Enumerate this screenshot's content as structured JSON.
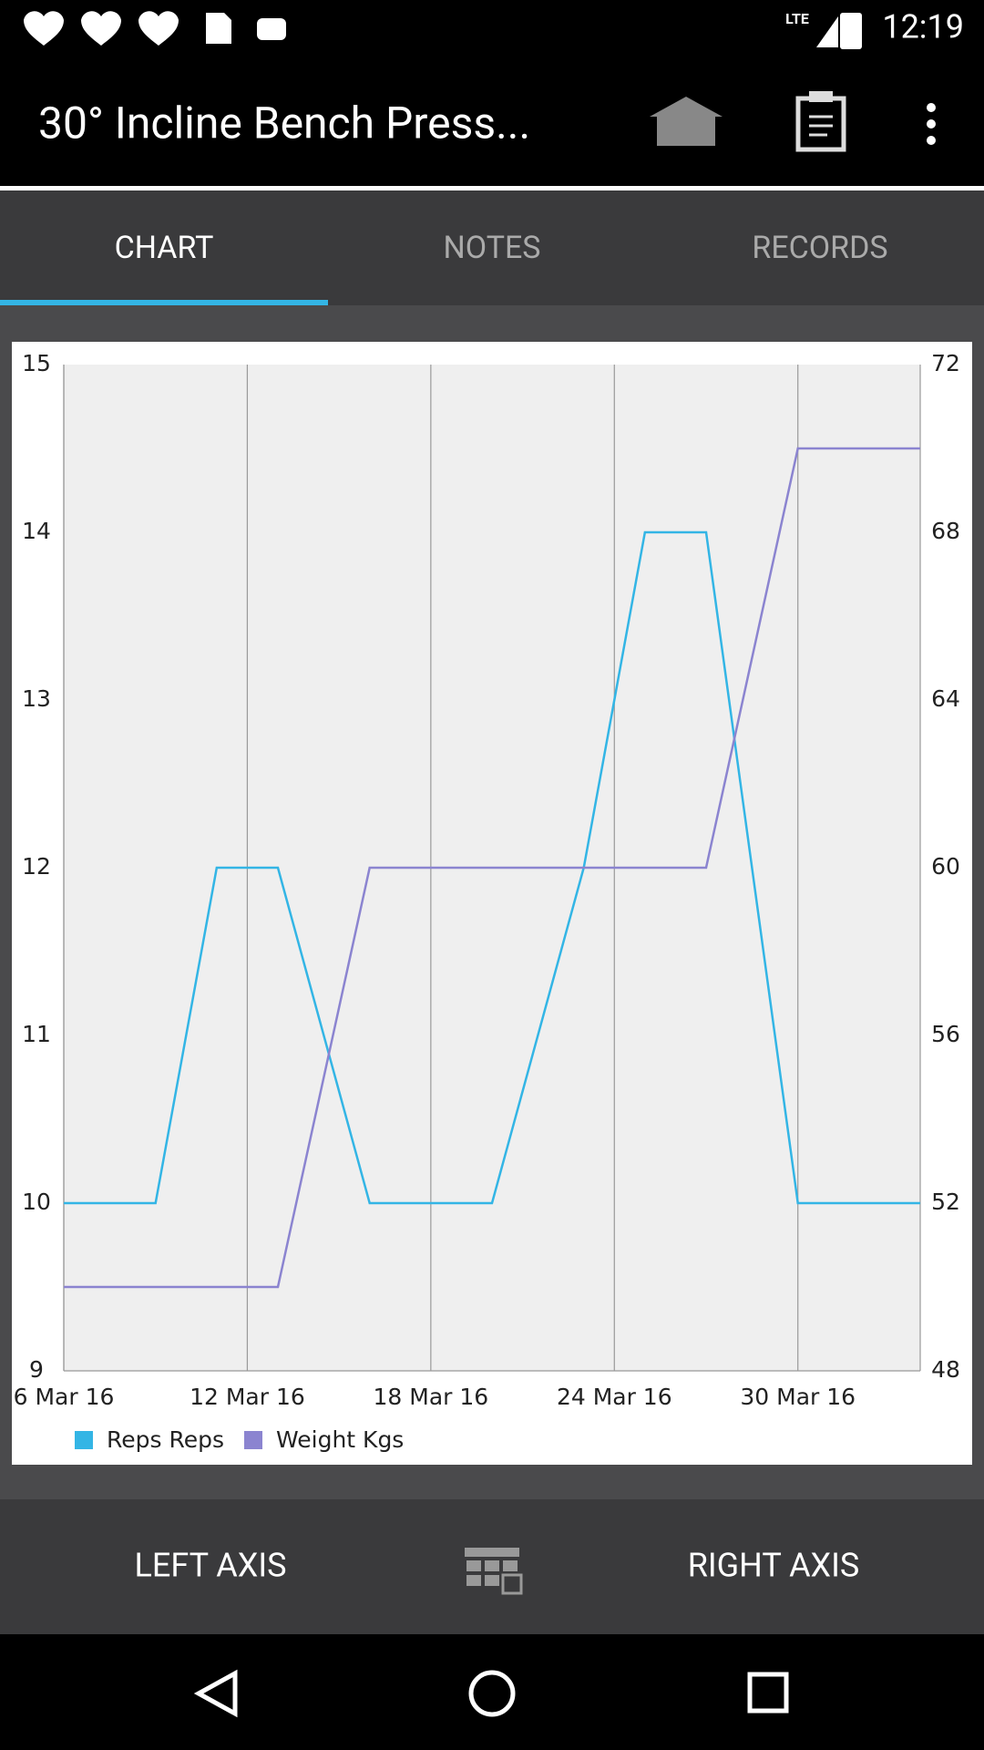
{
  "status_bar": {
    "network": "LTE",
    "time": "12:19"
  },
  "app_bar": {
    "title": "30° Incline Bench Press..."
  },
  "tabs": [
    "CHART",
    "NOTES",
    "RECORDS"
  ],
  "chart_data": {
    "type": "line",
    "x": [
      "2016-03-06",
      "2016-03-09",
      "2016-03-11",
      "2016-03-13",
      "2016-03-16",
      "2016-03-20",
      "2016-03-23",
      "2016-03-25",
      "2016-03-27",
      "2016-03-30",
      "2016-04-03"
    ],
    "series": [
      {
        "name": "Reps Reps",
        "color": "#33b5e5",
        "axis": "y",
        "values": [
          10,
          10,
          12,
          12,
          10,
          10,
          12,
          14,
          14,
          10,
          10
        ]
      },
      {
        "name": "Weight Kgs",
        "color": "#8b84d0",
        "axis": "y2",
        "values": [
          50,
          50,
          50,
          50,
          60,
          60,
          60,
          60,
          60,
          70,
          70
        ]
      }
    ],
    "xlim": [
      "2016-03-06",
      "2016-04-03"
    ],
    "xticks": [
      {
        "value": "2016-03-06",
        "label": "6 Mar 16"
      },
      {
        "value": "2016-03-12",
        "label": "12 Mar 16"
      },
      {
        "value": "2016-03-18",
        "label": "18 Mar 16"
      },
      {
        "value": "2016-03-24",
        "label": "24 Mar 16"
      },
      {
        "value": "2016-03-30",
        "label": "30 Mar 16"
      }
    ],
    "ylim": [
      9,
      15
    ],
    "yticks": [
      9,
      10,
      11,
      12,
      13,
      14,
      15
    ],
    "y2lim": [
      48,
      72
    ],
    "y2ticks": [
      48,
      52,
      56,
      60,
      64,
      68,
      72
    ],
    "grid": "x",
    "legend": "bottom"
  },
  "bottom_bar": {
    "left": "LEFT AXIS",
    "right": "RIGHT AXIS"
  }
}
